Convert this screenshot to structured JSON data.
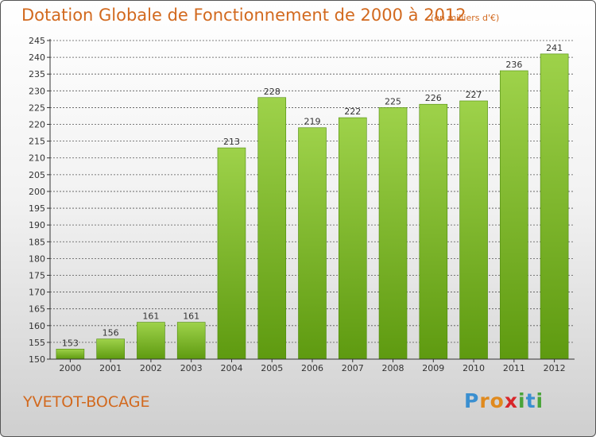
{
  "title": "Dotation Globale de Fonctionnement de 2000 à 2012",
  "subtitle": "(en milliers d'€)",
  "commune": "YVETOT-BOCAGE",
  "logo": {
    "text": "Proxiti",
    "letters": [
      {
        "ch": "P",
        "color": "#3a8fd0"
      },
      {
        "ch": "r",
        "color": "#e08a1e"
      },
      {
        "ch": "o",
        "color": "#e08a1e"
      },
      {
        "ch": "x",
        "color": "#d8262a"
      },
      {
        "ch": "i",
        "color": "#4aa43a"
      },
      {
        "ch": "t",
        "color": "#3a8fd0"
      },
      {
        "ch": "i",
        "color": "#4aa43a"
      }
    ]
  },
  "colors": {
    "title": "#d2691e",
    "bar_light": "#9ed24a",
    "bar_dark": "#5e9a10",
    "grid": "#444444"
  },
  "chart_data": {
    "type": "bar",
    "categories": [
      "2000",
      "2001",
      "2002",
      "2003",
      "2004",
      "2005",
      "2006",
      "2007",
      "2008",
      "2009",
      "2010",
      "2011",
      "2012"
    ],
    "values": [
      153,
      156,
      161,
      161,
      213,
      228,
      219,
      222,
      225,
      226,
      227,
      236,
      241
    ],
    "ylim": [
      150,
      245
    ],
    "ytick_step": 5,
    "grid": "dashed horizontal",
    "xlabel": "",
    "ylabel": ""
  }
}
